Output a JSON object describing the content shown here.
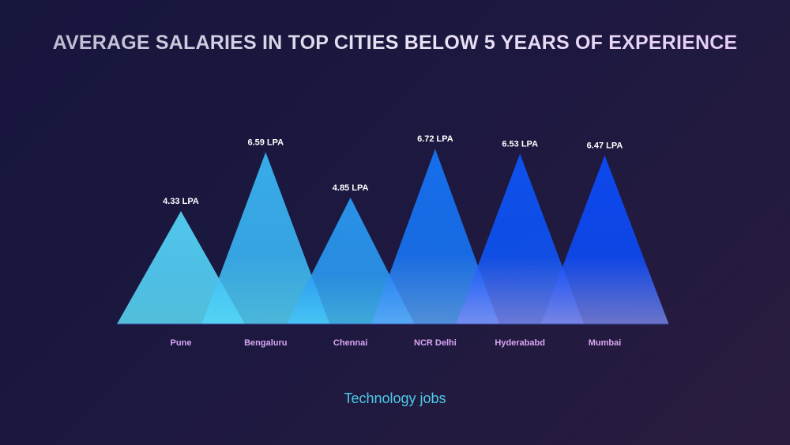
{
  "chart_data": {
    "type": "bar",
    "title": "AVERAGE SALARIES IN TOP CITIES BELOW 5 YEARS OF EXPERIENCE",
    "subtitle": "Technology jobs",
    "categories": [
      "Pune",
      "Bengaluru",
      "Chennai",
      "NCR Delhi",
      "Hyderababd",
      "Mumbai"
    ],
    "values": [
      4.33,
      6.59,
      4.85,
      6.72,
      6.53,
      6.47
    ],
    "data_labels": [
      "4.33 LPA",
      "6.59 LPA",
      "4.85 LPA",
      "6.72 LPA",
      "6.53 LPA",
      "6.47 LPA"
    ],
    "unit": "LPA",
    "mark_shape": "triangle",
    "grid": false,
    "colors": {
      "top": [
        "#55d6fb",
        "#3ab8f8",
        "#2a9cf6",
        "#1676f9",
        "#0d55fb",
        "#0b4cfc"
      ],
      "bottom": [
        "#5de0fa",
        "#54d8f8",
        "#45c6f8",
        "#5aa8f8",
        "#7b8df5",
        "#7a86e6"
      ],
      "label": "#d9a6f2",
      "value_label": "#ffffff",
      "subtitle": "#4fcbe6"
    }
  }
}
